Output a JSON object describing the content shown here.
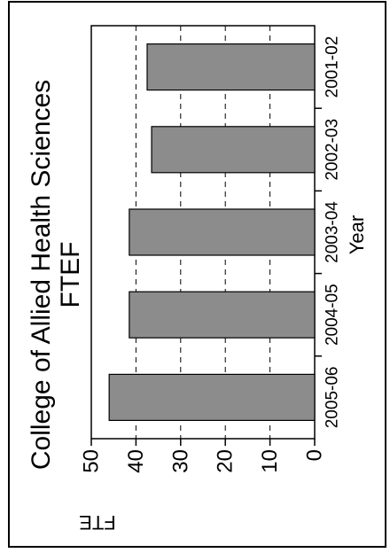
{
  "chart_data": {
    "type": "bar",
    "orientation": "rotated-90-ccw",
    "title": "College of Allied Health Sciences",
    "subtitle": "FTEF",
    "xlabel": "Year",
    "ylabel": "FTE",
    "categories": [
      "2001-02",
      "2002-03",
      "2003-04",
      "2004-05",
      "2005-06"
    ],
    "values": [
      37.5,
      36.5,
      41.5,
      41.5,
      46
    ],
    "ylim": [
      0,
      50
    ],
    "yticks": [
      0,
      10,
      20,
      30,
      40,
      50
    ],
    "grid": "dashed-horizontal",
    "bar_color": "#8c8c8c",
    "border_color": "#000000"
  }
}
